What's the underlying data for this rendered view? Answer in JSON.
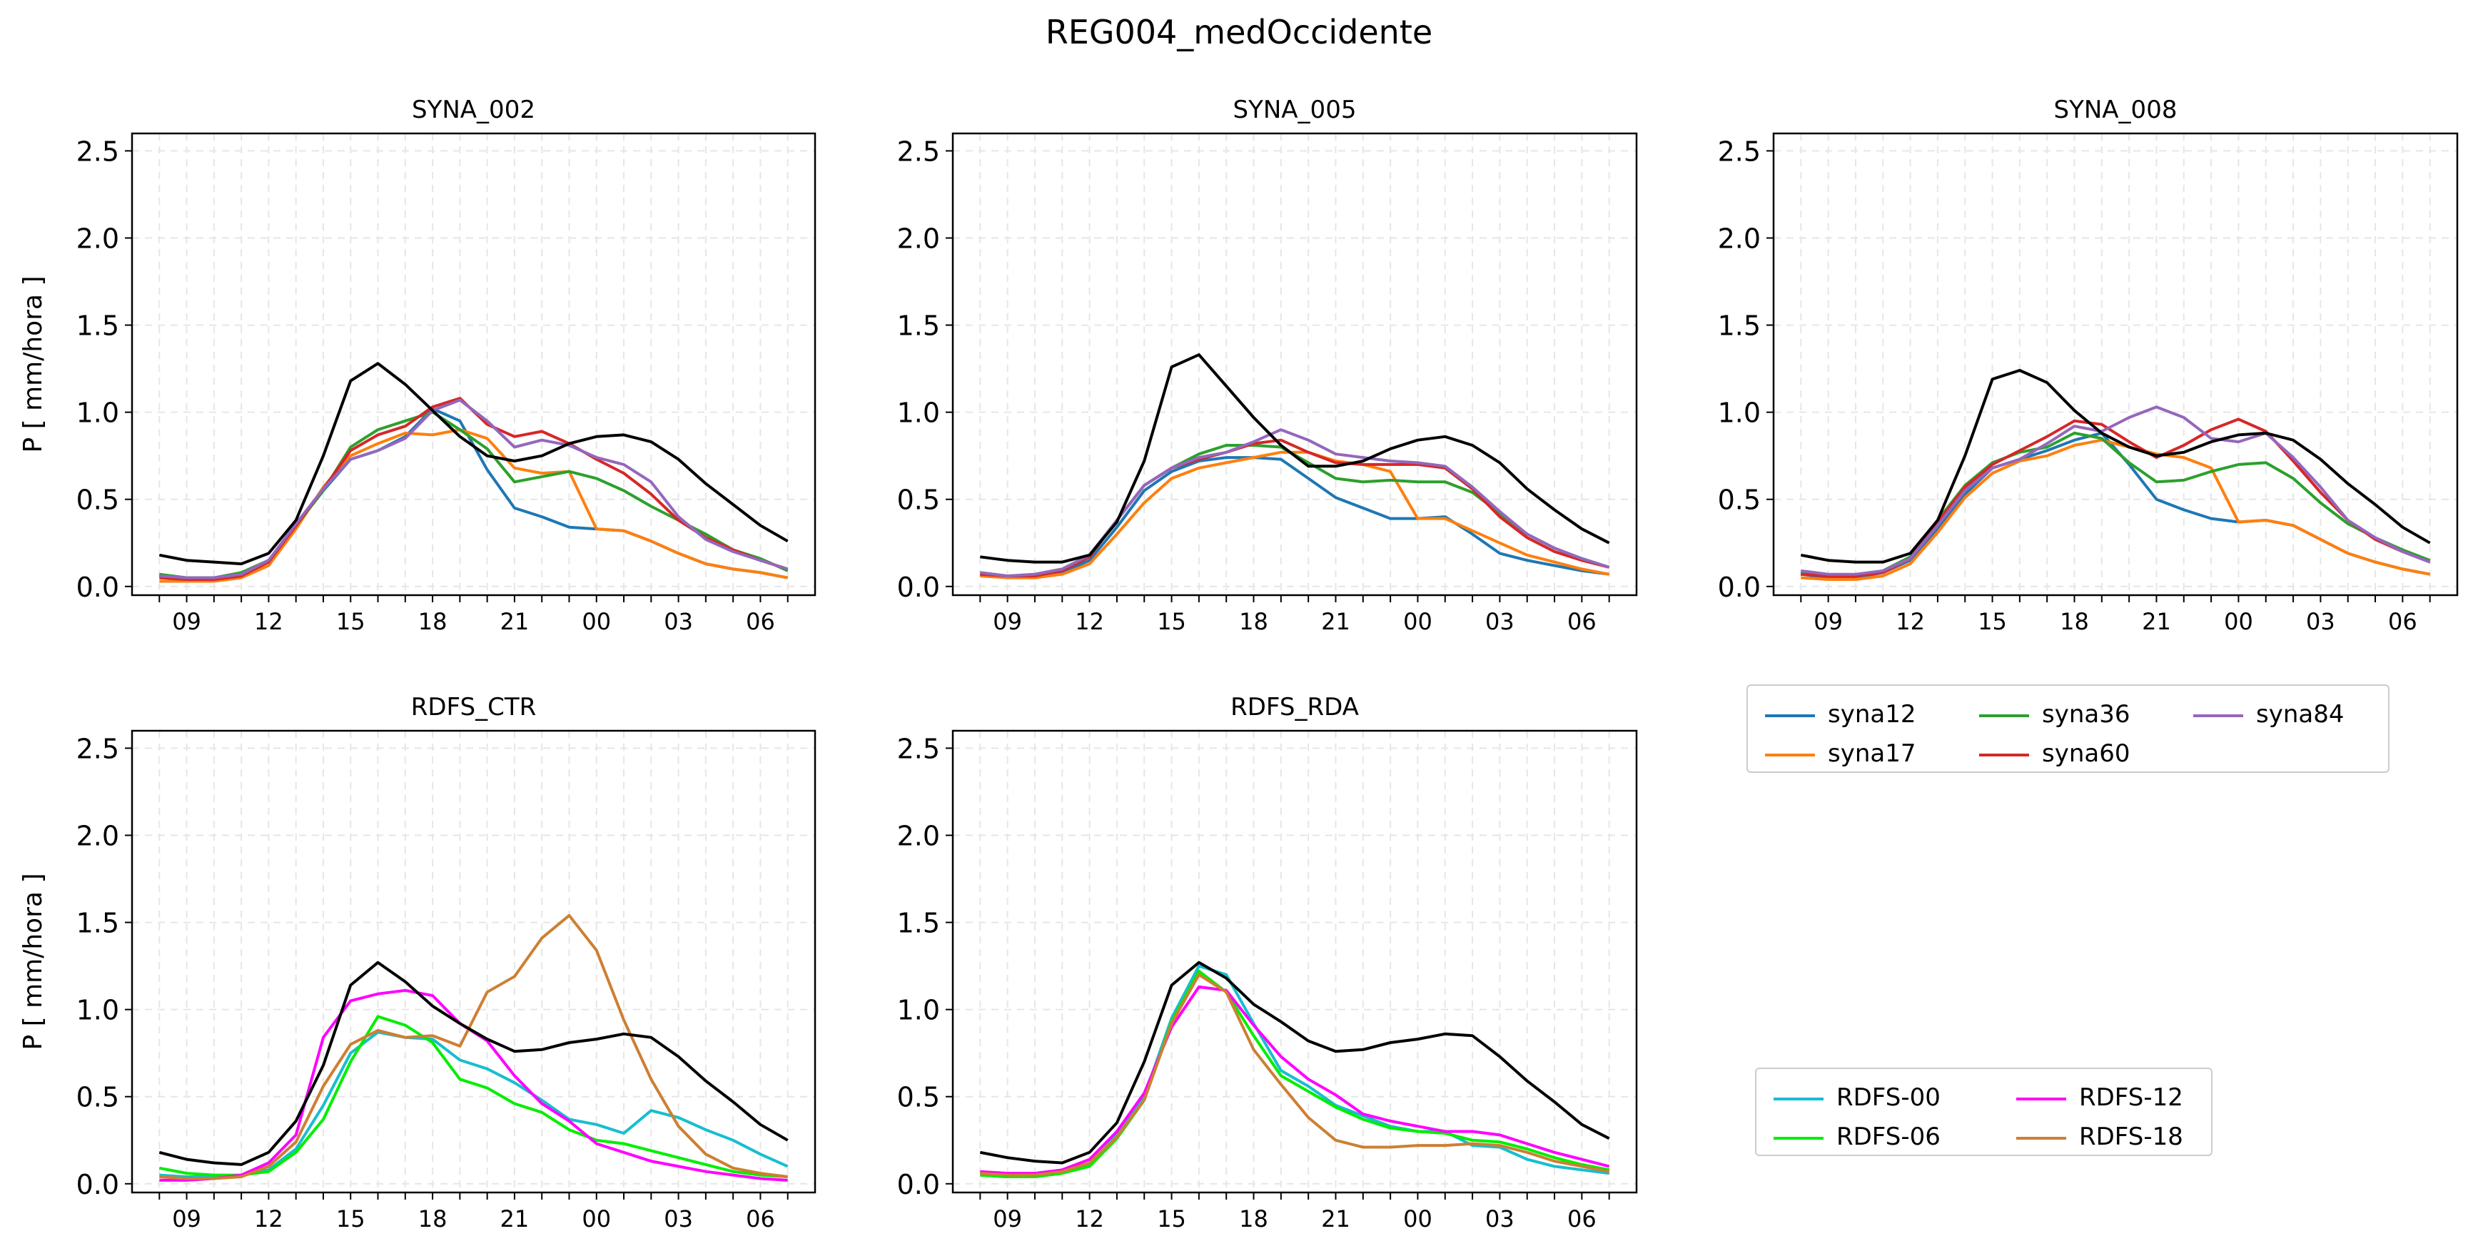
{
  "figure_title": "REG004_medOccidente",
  "chart_data": [
    {
      "type": "line",
      "title": "SYNA_002",
      "ylabel": "P [ mm/hora ]",
      "xlabel": "",
      "ylim": [
        0,
        2.5
      ],
      "yticks": [
        "0.0",
        "0.5",
        "1.0",
        "1.5",
        "2.0",
        "2.5"
      ],
      "xticks": [
        "09",
        "12",
        "15",
        "18",
        "21",
        "00",
        "03",
        "06"
      ],
      "grid": true,
      "x_hours_from_08": [
        0,
        1,
        2,
        3,
        4,
        5,
        6,
        7,
        8,
        9,
        10,
        11,
        12,
        13,
        14,
        15,
        16,
        17,
        18,
        19,
        20,
        21,
        22,
        23
      ],
      "series": [
        {
          "name": "syna12",
          "color": "#1f77b4",
          "values": [
            0.06,
            0.05,
            0.05,
            0.07,
            0.15,
            0.35,
            0.55,
            0.73,
            0.78,
            0.86,
            1.02,
            0.95,
            0.67,
            0.45,
            0.4,
            0.34,
            0.33,
            0.32,
            0.26,
            0.19,
            0.13,
            0.1,
            0.08,
            0.05
          ]
        },
        {
          "name": "syna17",
          "color": "#ff7f0e",
          "values": [
            0.03,
            0.03,
            0.03,
            0.05,
            0.12,
            0.33,
            0.57,
            0.75,
            0.82,
            0.88,
            0.87,
            0.9,
            0.85,
            0.68,
            0.65,
            0.66,
            0.33,
            0.32,
            0.26,
            0.19,
            0.13,
            0.1,
            0.08,
            0.05
          ]
        },
        {
          "name": "syna36",
          "color": "#2ca02c",
          "values": [
            0.07,
            0.05,
            0.05,
            0.08,
            0.15,
            0.35,
            0.55,
            0.8,
            0.9,
            0.95,
            1.0,
            0.9,
            0.79,
            0.6,
            0.63,
            0.66,
            0.62,
            0.55,
            0.46,
            0.38,
            0.3,
            0.21,
            0.16,
            0.09
          ]
        },
        {
          "name": "syna60",
          "color": "#d62728",
          "values": [
            0.05,
            0.04,
            0.04,
            0.06,
            0.14,
            0.35,
            0.56,
            0.78,
            0.87,
            0.92,
            1.03,
            1.08,
            0.93,
            0.86,
            0.89,
            0.82,
            0.73,
            0.65,
            0.53,
            0.38,
            0.28,
            0.21,
            0.15,
            0.1
          ]
        },
        {
          "name": "syna84",
          "color": "#9467bd",
          "values": [
            0.06,
            0.05,
            0.05,
            0.07,
            0.15,
            0.36,
            0.56,
            0.73,
            0.78,
            0.85,
            1.01,
            1.07,
            0.95,
            0.8,
            0.84,
            0.81,
            0.74,
            0.7,
            0.6,
            0.4,
            0.27,
            0.2,
            0.15,
            0.1
          ]
        },
        {
          "name": "",
          "color": "#000000",
          "values": [
            0.18,
            0.15,
            0.14,
            0.13,
            0.19,
            0.38,
            0.75,
            1.18,
            1.28,
            1.16,
            1.01,
            0.86,
            0.75,
            0.72,
            0.75,
            0.82,
            0.86,
            0.87,
            0.83,
            0.73,
            0.59,
            0.47,
            0.35,
            0.26
          ]
        }
      ]
    },
    {
      "type": "line",
      "title": "SYNA_005",
      "ylabel": "",
      "xlabel": "",
      "ylim": [
        0,
        2.5
      ],
      "yticks": [
        "0.0",
        "0.5",
        "1.0",
        "1.5",
        "2.0",
        "2.5"
      ],
      "xticks": [
        "09",
        "12",
        "15",
        "18",
        "21",
        "00",
        "03",
        "06"
      ],
      "grid": true,
      "x_hours_from_08": [
        0,
        1,
        2,
        3,
        4,
        5,
        6,
        7,
        8,
        9,
        10,
        11,
        12,
        13,
        14,
        15,
        16,
        17,
        18,
        19,
        20,
        21,
        22,
        23
      ],
      "series": [
        {
          "name": "syna12",
          "color": "#1f77b4",
          "values": [
            0.07,
            0.05,
            0.06,
            0.08,
            0.15,
            0.34,
            0.55,
            0.66,
            0.72,
            0.74,
            0.74,
            0.73,
            0.62,
            0.51,
            0.45,
            0.39,
            0.39,
            0.4,
            0.3,
            0.19,
            0.15,
            0.12,
            0.09,
            0.07
          ]
        },
        {
          "name": "syna17",
          "color": "#ff7f0e",
          "values": [
            0.06,
            0.05,
            0.05,
            0.07,
            0.13,
            0.3,
            0.48,
            0.62,
            0.68,
            0.71,
            0.74,
            0.77,
            0.77,
            0.72,
            0.7,
            0.66,
            0.39,
            0.39,
            0.32,
            0.25,
            0.18,
            0.14,
            0.1,
            0.07
          ]
        },
        {
          "name": "syna36",
          "color": "#2ca02c",
          "values": [
            0.08,
            0.06,
            0.07,
            0.1,
            0.18,
            0.38,
            0.58,
            0.68,
            0.76,
            0.81,
            0.81,
            0.8,
            0.71,
            0.62,
            0.6,
            0.61,
            0.6,
            0.6,
            0.54,
            0.42,
            0.3,
            0.22,
            0.16,
            0.11
          ]
        },
        {
          "name": "syna60",
          "color": "#d62728",
          "values": [
            0.07,
            0.06,
            0.06,
            0.09,
            0.17,
            0.38,
            0.58,
            0.68,
            0.73,
            0.77,
            0.82,
            0.84,
            0.77,
            0.71,
            0.7,
            0.7,
            0.7,
            0.68,
            0.56,
            0.4,
            0.28,
            0.2,
            0.15,
            0.11
          ]
        },
        {
          "name": "syna84",
          "color": "#9467bd",
          "values": [
            0.08,
            0.06,
            0.07,
            0.1,
            0.18,
            0.38,
            0.58,
            0.68,
            0.74,
            0.77,
            0.83,
            0.9,
            0.84,
            0.76,
            0.74,
            0.72,
            0.71,
            0.69,
            0.57,
            0.43,
            0.3,
            0.22,
            0.16,
            0.11
          ]
        },
        {
          "name": "",
          "color": "#000000",
          "values": [
            0.17,
            0.15,
            0.14,
            0.14,
            0.18,
            0.37,
            0.72,
            1.26,
            1.33,
            1.15,
            0.97,
            0.81,
            0.69,
            0.69,
            0.72,
            0.79,
            0.84,
            0.86,
            0.81,
            0.71,
            0.56,
            0.44,
            0.33,
            0.25
          ]
        }
      ]
    },
    {
      "type": "line",
      "title": "SYNA_008",
      "ylabel": "",
      "xlabel": "",
      "ylim": [
        0,
        2.5
      ],
      "yticks": [
        "0.0",
        "0.5",
        "1.0",
        "1.5",
        "2.0",
        "2.5"
      ],
      "xticks": [
        "09",
        "12",
        "15",
        "18",
        "21",
        "00",
        "03",
        "06"
      ],
      "grid": true,
      "x_hours_from_08": [
        0,
        1,
        2,
        3,
        4,
        5,
        6,
        7,
        8,
        9,
        10,
        11,
        12,
        13,
        14,
        15,
        16,
        17,
        18,
        19,
        20,
        21,
        22,
        23
      ],
      "series": [
        {
          "name": "syna12",
          "color": "#1f77b4",
          "values": [
            0.07,
            0.05,
            0.05,
            0.08,
            0.15,
            0.33,
            0.53,
            0.68,
            0.73,
            0.78,
            0.84,
            0.88,
            0.7,
            0.5,
            0.44,
            0.39,
            0.37,
            0.38,
            0.35,
            0.27,
            0.19,
            0.14,
            0.1,
            0.07
          ]
        },
        {
          "name": "syna17",
          "color": "#ff7f0e",
          "values": [
            0.05,
            0.04,
            0.04,
            0.06,
            0.13,
            0.31,
            0.51,
            0.65,
            0.72,
            0.75,
            0.81,
            0.84,
            0.8,
            0.76,
            0.74,
            0.68,
            0.37,
            0.38,
            0.35,
            0.27,
            0.19,
            0.14,
            0.1,
            0.07
          ]
        },
        {
          "name": "syna36",
          "color": "#2ca02c",
          "values": [
            0.08,
            0.06,
            0.06,
            0.09,
            0.17,
            0.38,
            0.58,
            0.71,
            0.77,
            0.8,
            0.88,
            0.85,
            0.71,
            0.6,
            0.61,
            0.66,
            0.7,
            0.71,
            0.62,
            0.48,
            0.36,
            0.28,
            0.21,
            0.15
          ]
        },
        {
          "name": "syna60",
          "color": "#d62728",
          "values": [
            0.07,
            0.06,
            0.06,
            0.08,
            0.16,
            0.37,
            0.57,
            0.7,
            0.78,
            0.86,
            0.95,
            0.93,
            0.83,
            0.74,
            0.81,
            0.9,
            0.96,
            0.89,
            0.72,
            0.54,
            0.38,
            0.27,
            0.2,
            0.14
          ]
        },
        {
          "name": "syna84",
          "color": "#9467bd",
          "values": [
            0.09,
            0.07,
            0.07,
            0.09,
            0.16,
            0.35,
            0.55,
            0.68,
            0.73,
            0.82,
            0.92,
            0.89,
            0.97,
            1.03,
            0.97,
            0.85,
            0.83,
            0.88,
            0.74,
            0.57,
            0.38,
            0.28,
            0.2,
            0.14
          ]
        },
        {
          "name": "",
          "color": "#000000",
          "values": [
            0.18,
            0.15,
            0.14,
            0.14,
            0.19,
            0.38,
            0.75,
            1.19,
            1.24,
            1.17,
            1.01,
            0.88,
            0.8,
            0.75,
            0.77,
            0.83,
            0.87,
            0.88,
            0.84,
            0.73,
            0.59,
            0.47,
            0.34,
            0.25
          ]
        }
      ]
    },
    {
      "type": "line",
      "title": "RDFS_CTR",
      "ylabel": "P [ mm/hora ]",
      "xlabel": "",
      "ylim": [
        0,
        2.5
      ],
      "yticks": [
        "0.0",
        "0.5",
        "1.0",
        "1.5",
        "2.0",
        "2.5"
      ],
      "xticks": [
        "09",
        "12",
        "15",
        "18",
        "21",
        "00",
        "03",
        "06"
      ],
      "grid": true,
      "x_hours_from_08": [
        0,
        1,
        2,
        3,
        4,
        5,
        6,
        7,
        8,
        9,
        10,
        11,
        12,
        13,
        14,
        15,
        16,
        17,
        18,
        19,
        20,
        21,
        22,
        23
      ],
      "series": [
        {
          "name": "RDFS-00",
          "color": "#17becf",
          "values": [
            0.05,
            0.04,
            0.04,
            0.05,
            0.08,
            0.2,
            0.45,
            0.75,
            0.87,
            0.84,
            0.83,
            0.71,
            0.66,
            0.58,
            0.48,
            0.37,
            0.34,
            0.29,
            0.42,
            0.38,
            0.31,
            0.25,
            0.17,
            0.1
          ]
        },
        {
          "name": "RDFS-06",
          "color": "#00ee00",
          "values": [
            0.09,
            0.06,
            0.05,
            0.05,
            0.07,
            0.18,
            0.37,
            0.7,
            0.96,
            0.91,
            0.81,
            0.6,
            0.55,
            0.46,
            0.41,
            0.31,
            0.25,
            0.23,
            0.19,
            0.15,
            0.11,
            0.07,
            0.05,
            0.04
          ]
        },
        {
          "name": "RDFS-12",
          "color": "#ff00ff",
          "values": [
            0.02,
            0.02,
            0.03,
            0.05,
            0.12,
            0.28,
            0.84,
            1.05,
            1.09,
            1.11,
            1.08,
            0.92,
            0.82,
            0.62,
            0.46,
            0.36,
            0.23,
            0.18,
            0.13,
            0.1,
            0.07,
            0.05,
            0.03,
            0.02
          ]
        },
        {
          "name": "RDFS-18",
          "color": "#cd7f32",
          "values": [
            0.04,
            0.03,
            0.03,
            0.04,
            0.1,
            0.24,
            0.56,
            0.8,
            0.88,
            0.84,
            0.85,
            0.79,
            1.1,
            1.19,
            1.41,
            1.54,
            1.34,
            0.94,
            0.6,
            0.33,
            0.17,
            0.09,
            0.06,
            0.04
          ]
        },
        {
          "name": "",
          "color": "#000000",
          "values": [
            0.18,
            0.14,
            0.12,
            0.11,
            0.18,
            0.36,
            0.68,
            1.14,
            1.27,
            1.16,
            1.02,
            0.92,
            0.83,
            0.76,
            0.77,
            0.81,
            0.83,
            0.86,
            0.84,
            0.73,
            0.59,
            0.47,
            0.34,
            0.25
          ]
        }
      ]
    },
    {
      "type": "line",
      "title": "RDFS_RDA",
      "ylabel": "",
      "xlabel": "",
      "ylim": [
        0,
        2.5
      ],
      "yticks": [
        "0.0",
        "0.5",
        "1.0",
        "1.5",
        "2.0",
        "2.5"
      ],
      "xticks": [
        "09",
        "12",
        "15",
        "18",
        "21",
        "00",
        "03",
        "06"
      ],
      "grid": true,
      "x_hours_from_08": [
        0,
        1,
        2,
        3,
        4,
        5,
        6,
        7,
        8,
        9,
        10,
        11,
        12,
        13,
        14,
        15,
        16,
        17,
        18,
        19,
        20,
        21,
        22,
        23
      ],
      "series": [
        {
          "name": "RDFS-00",
          "color": "#17becf",
          "values": [
            0.05,
            0.04,
            0.04,
            0.07,
            0.11,
            0.28,
            0.5,
            0.95,
            1.25,
            1.2,
            0.92,
            0.65,
            0.56,
            0.45,
            0.39,
            0.33,
            0.3,
            0.3,
            0.22,
            0.21,
            0.14,
            0.1,
            0.08,
            0.06
          ]
        },
        {
          "name": "RDFS-06",
          "color": "#00ee00",
          "values": [
            0.05,
            0.04,
            0.04,
            0.06,
            0.1,
            0.26,
            0.48,
            0.93,
            1.22,
            1.1,
            0.85,
            0.62,
            0.53,
            0.44,
            0.37,
            0.32,
            0.3,
            0.29,
            0.25,
            0.24,
            0.2,
            0.15,
            0.11,
            0.08
          ]
        },
        {
          "name": "RDFS-12",
          "color": "#ff00ff",
          "values": [
            0.07,
            0.06,
            0.06,
            0.08,
            0.14,
            0.3,
            0.52,
            0.9,
            1.13,
            1.11,
            0.91,
            0.73,
            0.6,
            0.51,
            0.4,
            0.36,
            0.33,
            0.3,
            0.3,
            0.28,
            0.23,
            0.18,
            0.14,
            0.1
          ]
        },
        {
          "name": "RDFS-18",
          "color": "#cd7f32",
          "values": [
            0.06,
            0.05,
            0.05,
            0.07,
            0.12,
            0.27,
            0.48,
            0.92,
            1.2,
            1.1,
            0.77,
            0.57,
            0.38,
            0.25,
            0.21,
            0.21,
            0.22,
            0.22,
            0.23,
            0.22,
            0.18,
            0.13,
            0.1,
            0.07
          ]
        },
        {
          "name": "",
          "color": "#000000",
          "values": [
            0.18,
            0.15,
            0.13,
            0.12,
            0.18,
            0.35,
            0.7,
            1.14,
            1.27,
            1.18,
            1.03,
            0.93,
            0.82,
            0.76,
            0.77,
            0.81,
            0.83,
            0.86,
            0.85,
            0.73,
            0.59,
            0.47,
            0.34,
            0.26
          ]
        }
      ]
    }
  ],
  "legends": [
    {
      "entries": [
        {
          "label": "syna12",
          "color": "#1f77b4"
        },
        {
          "label": "syna17",
          "color": "#ff7f0e"
        },
        {
          "label": "syna36",
          "color": "#2ca02c"
        },
        {
          "label": "syna60",
          "color": "#d62728"
        },
        {
          "label": "syna84",
          "color": "#9467bd"
        }
      ]
    },
    {
      "entries": [
        {
          "label": "RDFS-00",
          "color": "#17becf"
        },
        {
          "label": "RDFS-06",
          "color": "#00ee00"
        },
        {
          "label": "RDFS-12",
          "color": "#ff00ff"
        },
        {
          "label": "RDFS-18",
          "color": "#cd7f32"
        }
      ]
    }
  ]
}
